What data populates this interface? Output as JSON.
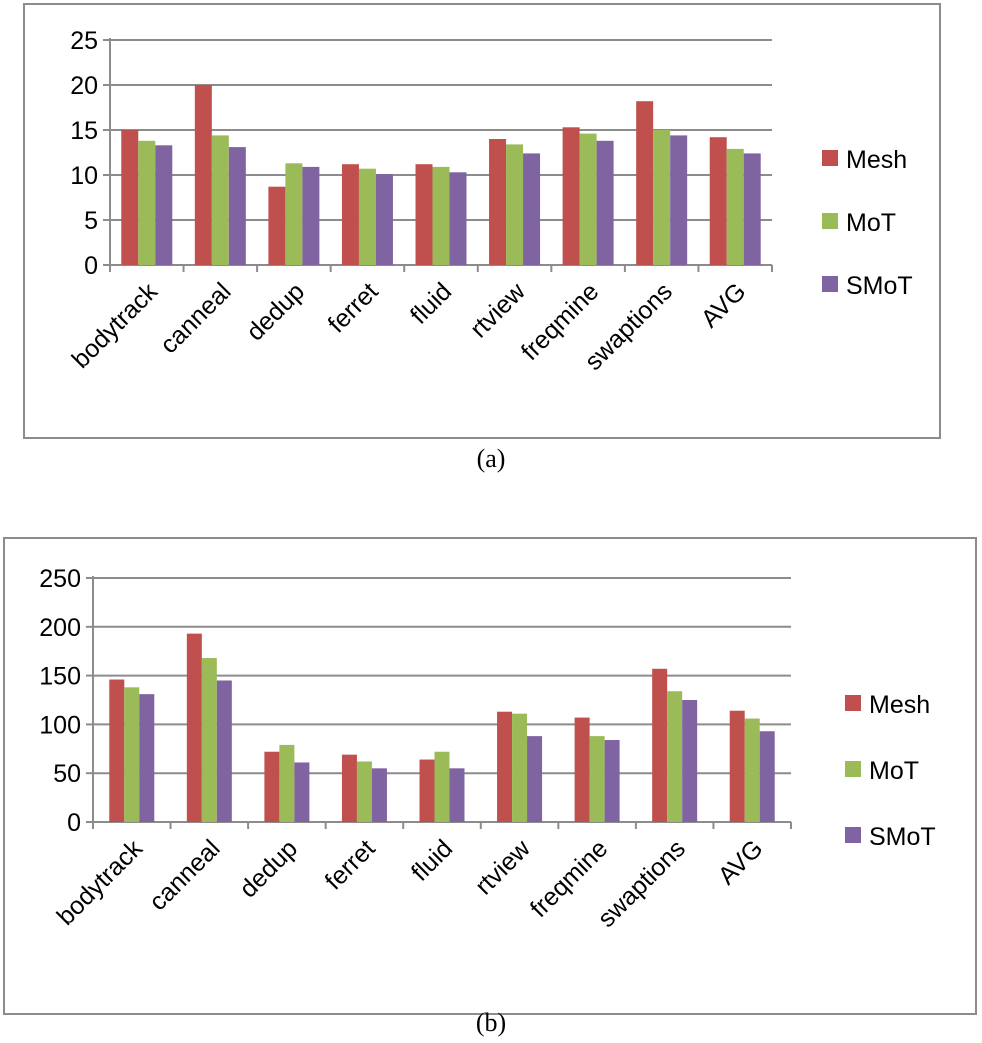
{
  "chart_data": [
    {
      "type": "bar",
      "caption": "(a)",
      "categories": [
        "bodytrack",
        "canneal",
        "dedup",
        "ferret",
        "fluid",
        "rtview",
        "freqmine",
        "swaptions",
        "AVG"
      ],
      "series": [
        {
          "name": "Mesh",
          "color": "#c0504d",
          "values": [
            15.0,
            20.0,
            8.7,
            11.2,
            11.2,
            14.0,
            15.3,
            18.2,
            14.2
          ]
        },
        {
          "name": "MoT",
          "color": "#9bbb59",
          "values": [
            13.8,
            14.4,
            11.3,
            10.7,
            10.9,
            13.4,
            14.6,
            15.0,
            12.9
          ]
        },
        {
          "name": "SMoT",
          "color": "#8064a2",
          "values": [
            13.3,
            13.1,
            10.9,
            10.1,
            10.3,
            12.4,
            13.8,
            14.4,
            12.4
          ]
        }
      ],
      "ylim": [
        0,
        25
      ],
      "yticks": [
        "0",
        "5",
        "10",
        "15",
        "20",
        "25"
      ],
      "grid": true,
      "legend": "right"
    },
    {
      "type": "bar",
      "caption": "(b)",
      "categories": [
        "bodytrack",
        "canneal",
        "dedup",
        "ferret",
        "fluid",
        "rtview",
        "freqmine",
        "swaptions",
        "AVG"
      ],
      "series": [
        {
          "name": "Mesh",
          "color": "#c0504d",
          "values": [
            146,
            193,
            72,
            69,
            64,
            113,
            107,
            157,
            114
          ]
        },
        {
          "name": "MoT",
          "color": "#9bbb59",
          "values": [
            138,
            168,
            79,
            62,
            72,
            111,
            88,
            134,
            106
          ]
        },
        {
          "name": "SMoT",
          "color": "#8064a2",
          "values": [
            131,
            145,
            61,
            55,
            55,
            88,
            84,
            125,
            93
          ]
        }
      ],
      "ylim": [
        0,
        250
      ],
      "yticks": [
        "0",
        "50",
        "100",
        "150",
        "200",
        "250"
      ],
      "grid": true,
      "legend": "right"
    }
  ]
}
